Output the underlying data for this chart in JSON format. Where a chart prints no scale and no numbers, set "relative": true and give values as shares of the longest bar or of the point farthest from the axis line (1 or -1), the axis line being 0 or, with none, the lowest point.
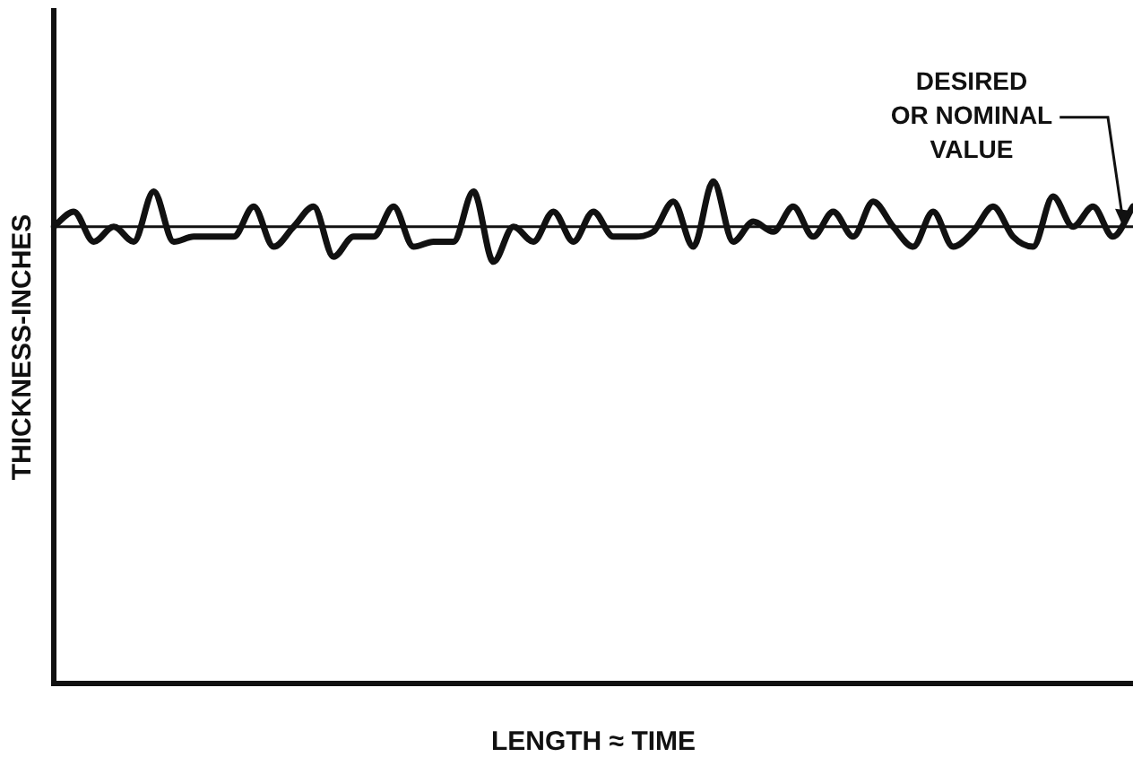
{
  "chart_data": {
    "type": "line",
    "relative": true,
    "xlabel": "LENGTH ≈ TIME",
    "ylabel": "THICKNESS-INCHES",
    "categories": [
      null,
      null,
      null,
      null,
      null,
      null,
      null,
      null,
      null,
      null,
      null,
      null,
      null,
      null,
      null,
      null,
      null,
      null,
      null,
      null,
      null,
      null,
      null,
      null,
      null,
      null,
      null,
      null,
      null,
      null,
      null,
      null,
      null,
      null,
      null,
      null,
      null,
      null,
      null,
      null,
      null,
      null,
      null,
      null,
      null,
      null,
      null,
      null,
      null,
      null,
      null,
      null,
      null,
      null,
      null
    ],
    "series": [
      {
        "color": "#111111",
        "values": [
          0.91,
          0.94,
          0.88,
          0.91,
          0.88,
          0.98,
          0.88,
          0.89,
          0.89,
          0.89,
          0.95,
          0.87,
          0.91,
          0.95,
          0.85,
          0.89,
          0.89,
          0.95,
          0.87,
          0.88,
          0.88,
          0.98,
          0.84,
          0.91,
          0.88,
          0.94,
          0.88,
          0.94,
          0.89,
          0.89,
          0.9,
          0.96,
          0.87,
          1,
          0.88,
          0.92,
          0.9,
          0.95,
          0.89,
          0.94,
          0.89,
          0.96,
          0.91,
          0.87,
          0.94,
          0.87,
          0.9,
          0.95,
          0.89,
          0.87,
          0.97,
          0.91,
          0.95,
          0.89,
          0.95
        ]
      }
    ],
    "ref_lines": [
      {
        "axis": "y",
        "value": 0.91,
        "label": "DESIRED OR NOMINAL VALUE",
        "color": "#111111"
      }
    ],
    "grid": false,
    "legend": false,
    "marker": "none",
    "line_style": "solid"
  }
}
